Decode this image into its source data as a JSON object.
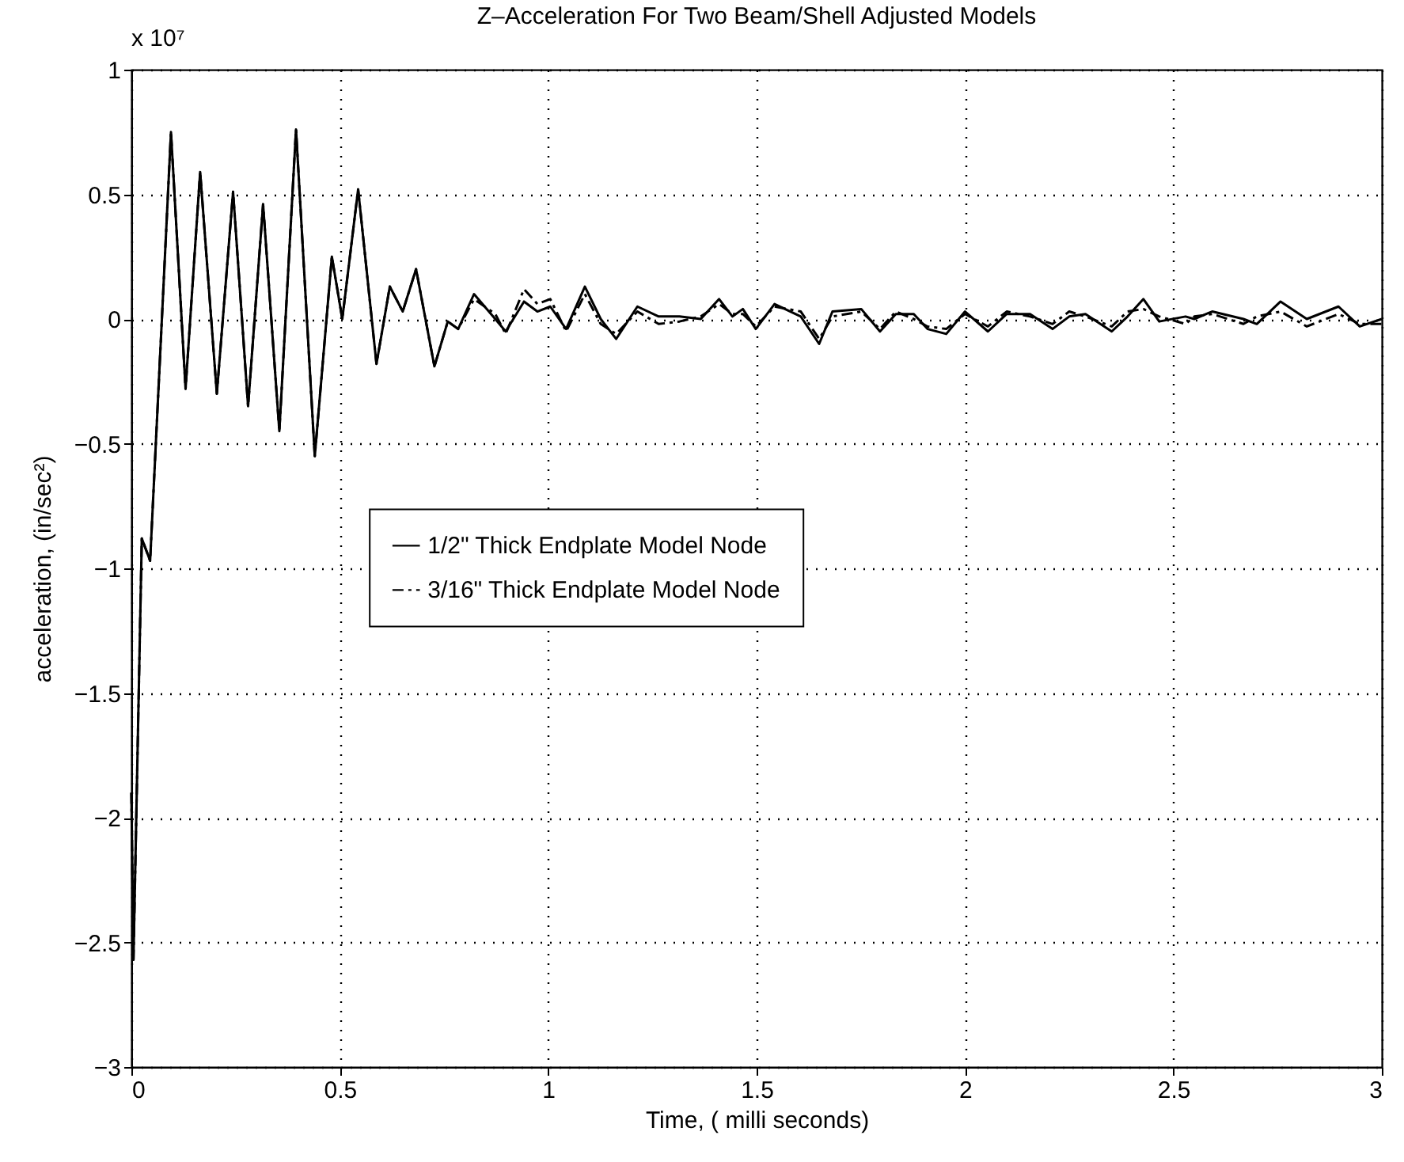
{
  "chart_data": {
    "type": "line",
    "title": "Z–Acceleration For Two Beam/Shell Adjusted Models",
    "xlabel": "Time, ( milli seconds)",
    "ylabel": "acceleration, (in/sec²)",
    "annotations": [
      "x 10⁷"
    ],
    "x": [
      0,
      0.005,
      0.025,
      0.045,
      0.095,
      0.13,
      0.165,
      0.205,
      0.244,
      0.28,
      0.316,
      0.355,
      0.395,
      0.44,
      0.481,
      0.506,
      0.544,
      0.588,
      0.62,
      0.651,
      0.683,
      0.727,
      0.759,
      0.784,
      0.822,
      0.873,
      0.898,
      0.942,
      0.974,
      1.005,
      1.043,
      1.088,
      1.126,
      1.163,
      1.214,
      1.265,
      1.315,
      1.366,
      1.41,
      1.442,
      1.467,
      1.498,
      1.543,
      1.606,
      1.65,
      1.682,
      1.751,
      1.796,
      1.834,
      1.877,
      1.91,
      1.955,
      2.0,
      2.055,
      2.1,
      2.156,
      2.21,
      2.25,
      2.289,
      2.352,
      2.39,
      2.428,
      2.466,
      2.529,
      2.55,
      2.593,
      2.668,
      2.7,
      2.757,
      2.82,
      2.896,
      2.947,
      3.0
    ],
    "series": [
      {
        "name": "1/2\" Thick Endplate Model Node",
        "color": "#000000",
        "line_style": "solid",
        "values": [
          -1.9,
          -2.57,
          -0.88,
          -0.97,
          0.75,
          -0.28,
          0.59,
          -0.3,
          0.51,
          -0.35,
          0.46,
          -0.45,
          0.76,
          -0.55,
          0.25,
          0,
          0.52,
          -0.18,
          0.13,
          0.03,
          0.2,
          -0.19,
          -0.01,
          -0.04,
          0.1,
          0,
          -0.05,
          0.07,
          0.03,
          0.05,
          -0.04,
          0.13,
          0,
          -0.08,
          0.05,
          0.01,
          0.01,
          0,
          0.08,
          0.01,
          0.04,
          -0.04,
          0.06,
          0.01,
          -0.1,
          0.03,
          0.04,
          -0.05,
          0.02,
          0.02,
          -0.04,
          -0.06,
          0.03,
          -0.05,
          0.02,
          0.02,
          -0.04,
          0.01,
          0.02,
          -0.05,
          0.01,
          0.08,
          -0.01,
          0.01,
          0,
          0.03,
          0,
          -0.02,
          0.07,
          0,
          0.05,
          -0.03,
          0
        ]
      },
      {
        "name": "3/16\" Thick Endplate Model Node",
        "color": "#000000",
        "line_style": "dashed",
        "values": [
          -1.9,
          -2.57,
          -0.88,
          -0.97,
          0.75,
          -0.28,
          0.59,
          -0.3,
          0.51,
          -0.35,
          0.46,
          -0.45,
          0.76,
          -0.55,
          0.25,
          0,
          0.52,
          -0.18,
          0.13,
          0.03,
          0.2,
          -0.19,
          -0.01,
          -0.04,
          0.08,
          0.02,
          -0.06,
          0.12,
          0.06,
          0.08,
          -0.05,
          0.1,
          -0.02,
          -0.06,
          0.03,
          -0.02,
          -0.01,
          0.01,
          0.06,
          0.02,
          0.02,
          -0.03,
          0.05,
          0.03,
          -0.08,
          0.01,
          0.03,
          -0.04,
          0.03,
          0,
          -0.03,
          -0.04,
          0.02,
          -0.03,
          0.03,
          0.01,
          -0.02,
          0.03,
          0.01,
          -0.03,
          0.03,
          0.04,
          0.01,
          -0.02,
          0.01,
          0.02,
          -0.02,
          0.01,
          0.03,
          -0.03,
          0.02,
          -0.02,
          -0.02
        ]
      }
    ],
    "xlim": [
      0,
      3
    ],
    "xticks": [
      0,
      0.5,
      1,
      1.5,
      2,
      2.5,
      3
    ],
    "ylim": [
      -3,
      1
    ],
    "yticks": [
      -3,
      -2.5,
      -2,
      -1.5,
      -1,
      -0.5,
      0,
      0.5,
      1
    ],
    "grid": true,
    "legend": "left",
    "marker": "none"
  }
}
